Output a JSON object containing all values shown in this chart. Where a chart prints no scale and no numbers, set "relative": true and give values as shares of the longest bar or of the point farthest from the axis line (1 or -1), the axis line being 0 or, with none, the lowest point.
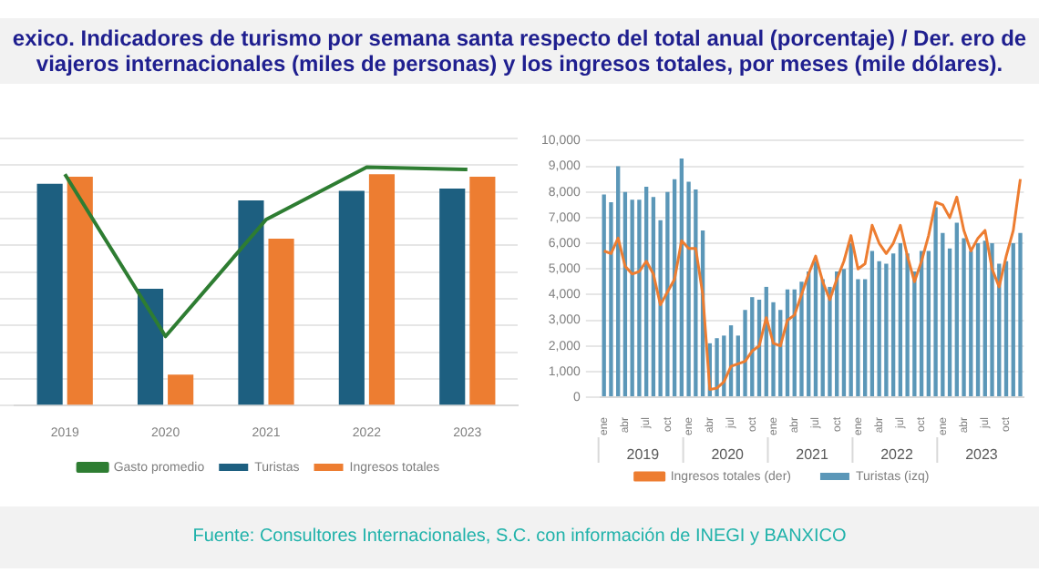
{
  "chart_data": [
    {
      "type": "bar",
      "title": "exico. Indicadores de turismo por semana santa respecto del total anual (porcentaje) / Der. ero de viajeros internacionales (miles de personas) y los ingresos totales, por meses (mile dólares).",
      "annotations": [
        "Fuente: Consultores Internacionales, S.C. con información de INEGI y BANXICO"
      ],
      "relative": true,
      "grid": "y",
      "legend": "bottom",
      "categories": [
        "2019",
        "2020",
        "2021",
        "2022",
        "2023"
      ],
      "series": [
        {
          "name": "Turistas",
          "color": "#1d5f80",
          "values": [
            0.93,
            0.49,
            0.86,
            0.9,
            0.91
          ]
        },
        {
          "name": "Ingresos totales",
          "color": "#ed7d31",
          "values": [
            0.96,
            0.13,
            0.7,
            0.97,
            0.96
          ]
        },
        {
          "name": "Gasto promedio",
          "type": "line",
          "color": "#2e7d32",
          "values": [
            0.97,
            0.29,
            0.78,
            1,
            0.99
          ]
        }
      ]
    },
    {
      "type": "bar",
      "grid": "y",
      "legend": "bottom",
      "annotations": [
        "2019",
        "2020",
        "2021",
        "2022",
        "2023"
      ],
      "categories": [
        "ene",
        null,
        null,
        "abr",
        null,
        null,
        "jul",
        null,
        null,
        "oct",
        null,
        null,
        "ene",
        null,
        null,
        "abr",
        null,
        null,
        "jul",
        null,
        null,
        "oct",
        null,
        null,
        "ene",
        null,
        null,
        "abr",
        null,
        null,
        "jul",
        null,
        null,
        "oct",
        null,
        null,
        "ene",
        null,
        null,
        "abr",
        null,
        null,
        "jul",
        null,
        null,
        "oct",
        null,
        null,
        "ene",
        null,
        null,
        "abr",
        null,
        null,
        "jul",
        null,
        null,
        "oct",
        null,
        null
      ],
      "ylim": [
        0,
        10000
      ],
      "yticks": [
        0,
        {
          "value": 1000,
          "label": "1,000"
        },
        {
          "value": 2000,
          "label": "2,000"
        },
        {
          "value": 3000,
          "label": "3,000"
        },
        {
          "value": 4000,
          "label": "4,000"
        },
        {
          "value": 5000,
          "label": "5,000"
        },
        {
          "value": 6000,
          "label": "6,000"
        },
        {
          "value": 7000,
          "label": "7,000"
        },
        {
          "value": 8000,
          "label": "8,000"
        },
        {
          "value": 9000,
          "label": "9,000"
        },
        {
          "value": 10000,
          "label": "10,000"
        }
      ],
      "series": [
        {
          "name": "Turistas (izq)",
          "color": "#5b97b8",
          "values": [
            7900,
            7600,
            9000,
            8000,
            7700,
            7700,
            8200,
            7800,
            6900,
            8000,
            8500,
            9300,
            8400,
            8100,
            6500,
            2100,
            2300,
            2400,
            2800,
            2400,
            3400,
            3900,
            3800,
            4300,
            3700,
            3400,
            4200,
            4200,
            4500,
            4900,
            5300,
            4600,
            4300,
            4900,
            5000,
            6000,
            4600,
            4600,
            5700,
            5300,
            5200,
            5600,
            6000,
            5600,
            4900,
            5700,
            5700,
            7400,
            6400,
            5800,
            6800,
            6200,
            5700,
            6000,
            6100,
            6000,
            5200,
            5300,
            6000,
            6400
          ]
        },
        {
          "name": "Ingresos totales (der)",
          "type": "line",
          "color": "#ed7d31",
          "values": [
            5700,
            5600,
            6200,
            5100,
            4800,
            4900,
            5300,
            4800,
            3600,
            4100,
            4600,
            6100,
            5800,
            5800,
            4000,
            300,
            350,
            600,
            1200,
            1300,
            1400,
            1800,
            2000,
            3100,
            2100,
            2000,
            3000,
            3200,
            4000,
            4800,
            5500,
            4500,
            3800,
            4600,
            5300,
            6300,
            5000,
            5200,
            6700,
            6000,
            5600,
            6000,
            6700,
            5500,
            4500,
            5300,
            6300,
            7600,
            7500,
            7000,
            7800,
            6500,
            5700,
            6200,
            6500,
            5000,
            4300,
            5500,
            6500,
            8500
          ]
        }
      ]
    }
  ]
}
